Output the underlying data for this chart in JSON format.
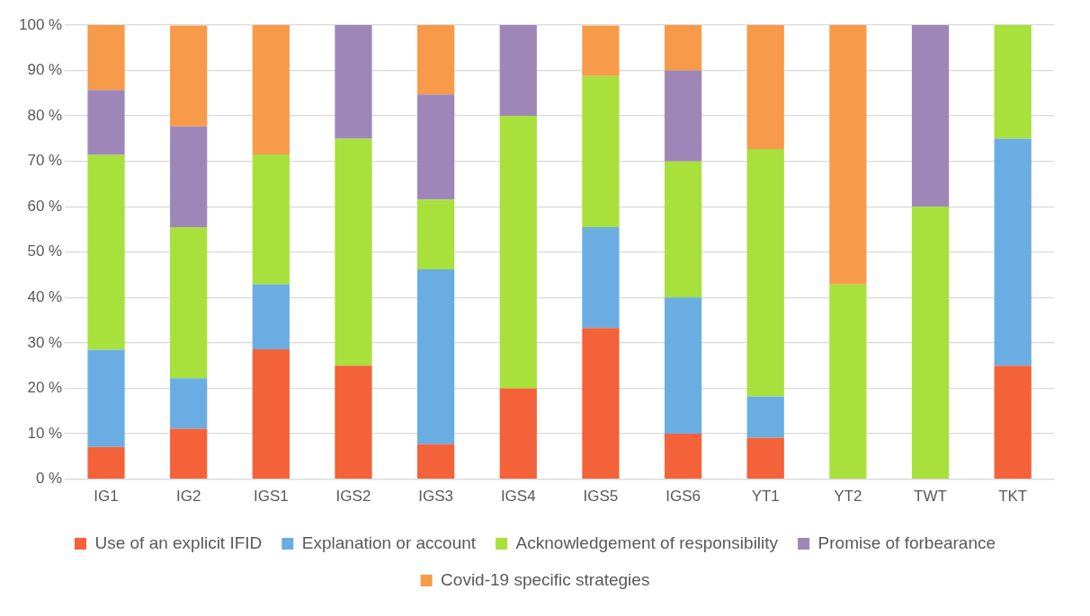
{
  "chart_data": {
    "type": "bar",
    "stacked": true,
    "categories": [
      "IG1",
      "IG2",
      "IGS1",
      "IGS2",
      "IGS3",
      "IGS4",
      "IGS5",
      "IGS6",
      "YT1",
      "YT2",
      "TWT",
      "TKT"
    ],
    "series": [
      {
        "name": "Use of an explicit IFID",
        "color": "#f4623a",
        "values": [
          7.1,
          11.1,
          28.6,
          25,
          7.7,
          20,
          33.3,
          10,
          9.1,
          0,
          0,
          25
        ]
      },
      {
        "name": "Explanation or account",
        "color": "#6aade3",
        "values": [
          21.4,
          11.1,
          14.3,
          0,
          38.5,
          0,
          22.2,
          30,
          9.1,
          0,
          0,
          50
        ]
      },
      {
        "name": "Acknowledgement of responsibility",
        "color": "#a8e03c",
        "values": [
          42.9,
          33.3,
          28.6,
          50,
          15.4,
          60,
          33.3,
          30,
          54.5,
          42.9,
          60,
          25
        ]
      },
      {
        "name": "Promise of forbearance",
        "color": "#9e87b8",
        "values": [
          14.3,
          22.2,
          0,
          25,
          23.1,
          20,
          0,
          20,
          0,
          0,
          40,
          0
        ]
      },
      {
        "name": "Covid-19 specific strategies",
        "color": "#f79a4a",
        "values": [
          14.3,
          22.2,
          28.6,
          0,
          15.4,
          0,
          11.1,
          10,
          27.3,
          57.1,
          0,
          0
        ]
      }
    ],
    "ylim": [
      0,
      100
    ],
    "yticks": [
      {
        "value": 0,
        "label": "0 %"
      },
      {
        "value": 10,
        "label": "10 %"
      },
      {
        "value": 20,
        "label": "20 %"
      },
      {
        "value": 30,
        "label": "30 %"
      },
      {
        "value": 40,
        "label": "40 %"
      },
      {
        "value": 50,
        "label": "50 %"
      },
      {
        "value": 60,
        "label": "60 %"
      },
      {
        "value": 70,
        "label": "70 %"
      },
      {
        "value": 80,
        "label": "80 %"
      },
      {
        "value": 90,
        "label": "90 %"
      },
      {
        "value": 100,
        "label": "100 %"
      }
    ],
    "grid": "y",
    "legend": "bottom"
  }
}
